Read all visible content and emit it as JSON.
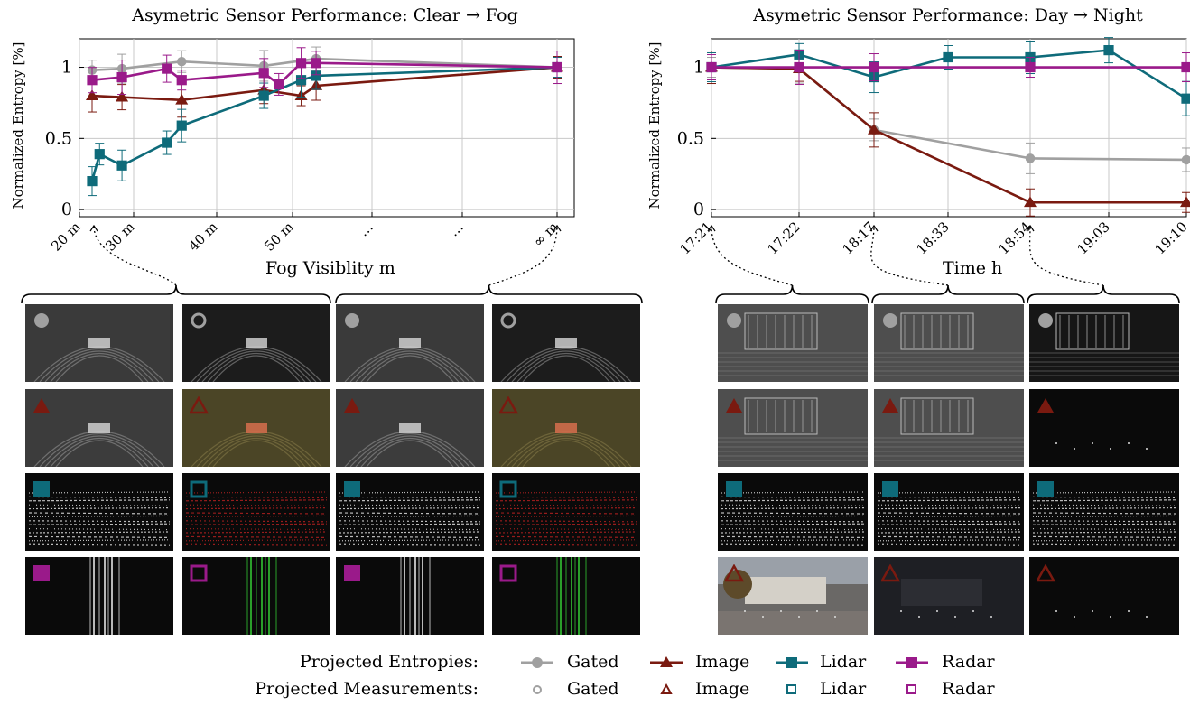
{
  "chart_data": [
    {
      "type": "line",
      "title": "Asymetric Sensor Performance: Clear → Fog",
      "xlabel": "Fog Visiblity m",
      "ylabel": "Normalized Entropy [%]",
      "x_tick_labels": [
        "20 m",
        "30 m",
        "40 m",
        "50 m",
        "…",
        "…",
        "∞ m"
      ],
      "y_ticks": [
        0,
        0.5,
        1
      ],
      "ylim": [
        -0.05,
        1.2
      ],
      "grid": true,
      "series": [
        {
          "name": "Gated",
          "marker": "circle",
          "color": "#a0a0a0",
          "points": [
            [
              23,
              0.98
            ],
            [
              27,
              0.99
            ],
            [
              35,
              1.04
            ],
            [
              46,
              1.01
            ],
            [
              53,
              1.06
            ],
            [
              100,
              1.0
            ]
          ]
        },
        {
          "name": "Image",
          "marker": "triangle",
          "color": "#7a1a10",
          "points": [
            [
              23,
              0.8
            ],
            [
              27,
              0.79
            ],
            [
              35,
              0.77
            ],
            [
              46,
              0.84
            ],
            [
              51,
              0.8
            ],
            [
              53,
              0.87
            ],
            [
              100,
              1.0
            ]
          ]
        },
        {
          "name": "Lidar",
          "marker": "square",
          "color": "#0e6b7a",
          "points": [
            [
              23,
              0.2
            ],
            [
              24,
              0.39
            ],
            [
              27,
              0.31
            ],
            [
              33,
              0.47
            ],
            [
              35,
              0.59
            ],
            [
              46,
              0.8
            ],
            [
              51,
              0.91
            ],
            [
              53,
              0.94
            ],
            [
              100,
              1.0
            ]
          ]
        },
        {
          "name": "Radar",
          "marker": "square",
          "color": "#9a1a8a",
          "points": [
            [
              23,
              0.91
            ],
            [
              27,
              0.93
            ],
            [
              33,
              0.99
            ],
            [
              35,
              0.91
            ],
            [
              46,
              0.96
            ],
            [
              48,
              0.88
            ],
            [
              51,
              1.03
            ],
            [
              53,
              1.03
            ],
            [
              100,
              1.0
            ]
          ]
        }
      ]
    },
    {
      "type": "line",
      "title": "Asymetric Sensor Performance: Day → Night",
      "xlabel": "Time h",
      "ylabel": "Normalized Entropy [%]",
      "x_tick_labels": [
        "17:21",
        "17:22",
        "18:17",
        "18:33",
        "18:54",
        "19:03",
        "19:10"
      ],
      "y_ticks": [
        0,
        0.5,
        1
      ],
      "ylim": [
        -0.05,
        1.2
      ],
      "grid": true,
      "series": [
        {
          "name": "Gated",
          "marker": "circle",
          "color": "#a0a0a0",
          "values": [
            1.0,
            0.99,
            0.56,
            null,
            0.36,
            null,
            0.35
          ]
        },
        {
          "name": "Image",
          "marker": "triangle",
          "color": "#7a1a10",
          "values": [
            1.0,
            0.99,
            0.56,
            null,
            0.05,
            null,
            0.05
          ]
        },
        {
          "name": "Lidar",
          "marker": "square",
          "color": "#0e6b7a",
          "values": [
            1.0,
            1.09,
            0.93,
            1.07,
            1.07,
            1.12,
            0.78
          ]
        },
        {
          "name": "Radar",
          "marker": "square",
          "color": "#9a1a8a",
          "values": [
            1.0,
            1.0,
            1.0,
            null,
            1.0,
            null,
            1.0
          ]
        }
      ]
    }
  ],
  "legend": {
    "entropies_label": "Projected Entropies:",
    "measurements_label": "Projected Measurements:",
    "items": [
      "Gated",
      "Image",
      "Lidar",
      "Radar"
    ]
  },
  "colors": {
    "gated": "#a0a0a0",
    "image": "#7a1a10",
    "lidar": "#0e6b7a",
    "radar": "#9a1a8a"
  }
}
